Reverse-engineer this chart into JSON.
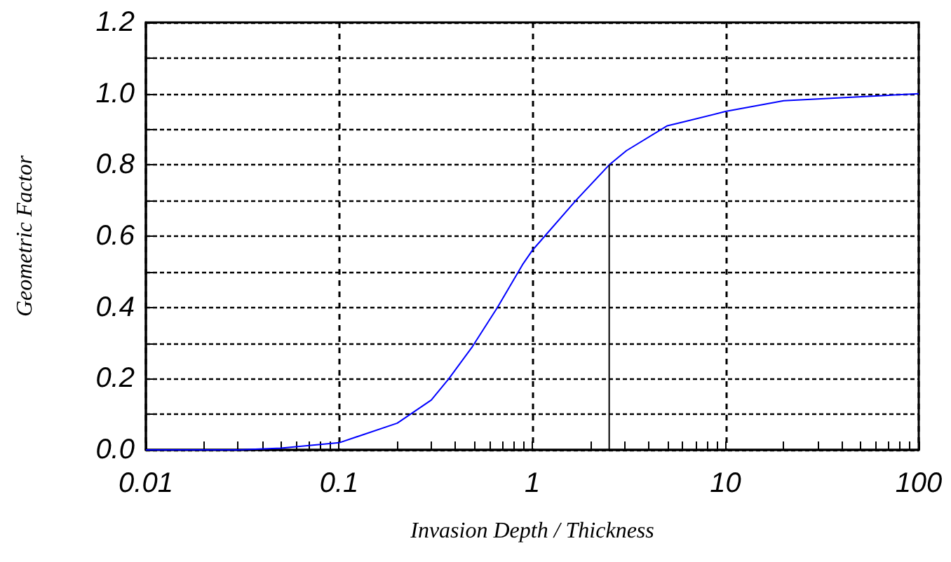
{
  "chart_data": {
    "type": "line",
    "xlabel": "Invasion Depth / Thickness",
    "ylabel": "Geometric Factor",
    "log": "x",
    "grid": true,
    "marker": "none",
    "line_style": "solid",
    "xlim": [
      0.01,
      100
    ],
    "xticks": [
      {
        "value": 0.01,
        "label": "0.01"
      },
      {
        "value": 0.02,
        "label": null
      },
      {
        "value": 0.03,
        "label": null
      },
      {
        "value": 0.04,
        "label": null
      },
      {
        "value": 0.05,
        "label": null
      },
      {
        "value": 0.06,
        "label": null
      },
      {
        "value": 0.07,
        "label": null
      },
      {
        "value": 0.08,
        "label": null
      },
      {
        "value": 0.09,
        "label": null
      },
      {
        "value": 0.1,
        "label": "0.1"
      },
      {
        "value": 0.2,
        "label": null
      },
      {
        "value": 0.3,
        "label": null
      },
      {
        "value": 0.4,
        "label": null
      },
      {
        "value": 0.5,
        "label": null
      },
      {
        "value": 0.6,
        "label": null
      },
      {
        "value": 0.7,
        "label": null
      },
      {
        "value": 0.8,
        "label": null
      },
      {
        "value": 0.9,
        "label": null
      },
      {
        "value": 1,
        "label": "1"
      },
      {
        "value": 2,
        "label": null
      },
      {
        "value": 3,
        "label": null
      },
      {
        "value": 4,
        "label": null
      },
      {
        "value": 5,
        "label": null
      },
      {
        "value": 6,
        "label": null
      },
      {
        "value": 7,
        "label": null
      },
      {
        "value": 8,
        "label": null
      },
      {
        "value": 9,
        "label": null
      },
      {
        "value": 10,
        "label": "10"
      },
      {
        "value": 20,
        "label": null
      },
      {
        "value": 30,
        "label": null
      },
      {
        "value": 40,
        "label": null
      },
      {
        "value": 50,
        "label": null
      },
      {
        "value": 60,
        "label": null
      },
      {
        "value": 70,
        "label": null
      },
      {
        "value": 80,
        "label": null
      },
      {
        "value": 90,
        "label": null
      },
      {
        "value": 100,
        "label": "100"
      }
    ],
    "ylim": [
      0,
      1.2
    ],
    "yticks": [
      {
        "value": 0,
        "label": "0.0"
      },
      {
        "value": 0.1,
        "label": null
      },
      {
        "value": 0.2,
        "label": "0.2"
      },
      {
        "value": 0.3,
        "label": null
      },
      {
        "value": 0.4,
        "label": "0.4"
      },
      {
        "value": 0.5,
        "label": null
      },
      {
        "value": 0.6,
        "label": "0.6"
      },
      {
        "value": 0.7,
        "label": null
      },
      {
        "value": 0.8,
        "label": "0.8"
      },
      {
        "value": 0.9,
        "label": null
      },
      {
        "value": 1,
        "label": "1.0"
      },
      {
        "value": 1.1,
        "label": null
      },
      {
        "value": 1.2,
        "label": "1.2"
      }
    ],
    "series": [
      {
        "color": "#0000ff",
        "x": [
          0.01,
          0.03,
          0.05,
          0.1,
          0.2,
          0.3,
          0.37,
          0.49,
          0.66,
          0.89,
          1,
          1.68,
          2.5,
          3.07,
          5,
          6,
          10,
          20,
          100
        ],
        "values": [
          0,
          0,
          0.005,
          0.02,
          0.075,
          0.14,
          0.2,
          0.29,
          0.4,
          0.52,
          0.56,
          0.7,
          0.8,
          0.84,
          0.91,
          0.92,
          0.95,
          0.98,
          1.0
        ]
      },
      {
        "color": "#000000",
        "x": [
          2.5,
          2.5
        ],
        "values": [
          0,
          0.8
        ]
      }
    ]
  }
}
